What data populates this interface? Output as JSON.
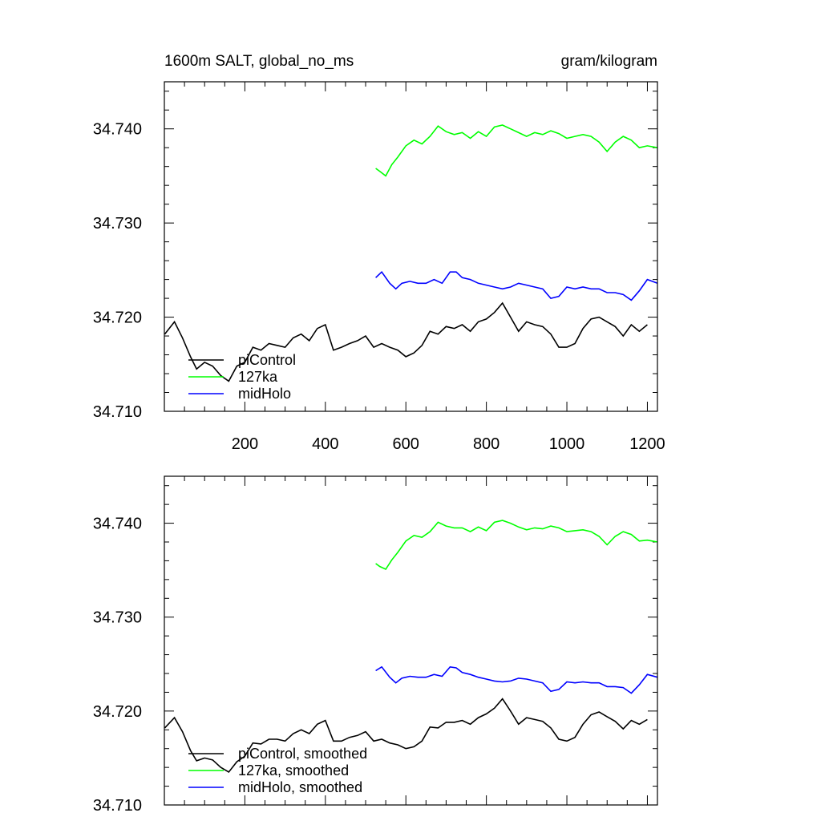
{
  "chart_data": [
    {
      "type": "line",
      "title": "1600m SALT, global_no_ms",
      "units": "gram/kilogram",
      "xlim": [
        0,
        1225
      ],
      "ylim": [
        34.71,
        34.745
      ],
      "xticks": [
        200,
        400,
        600,
        800,
        1000,
        1200
      ],
      "xtick_labels": [
        "200",
        "400",
        "600",
        "800",
        "1000",
        "1200"
      ],
      "yticks": [
        34.71,
        34.72,
        34.73,
        34.74
      ],
      "ytick_labels": [
        "34.710",
        "34.720",
        "34.730",
        "34.740"
      ],
      "legend_position": "bottom-left",
      "series": [
        {
          "name": "piControl",
          "color": "#000000",
          "x": [
            1,
            25,
            45,
            65,
            80,
            100,
            120,
            140,
            160,
            180,
            200,
            220,
            240,
            260,
            280,
            300,
            320,
            340,
            360,
            380,
            400,
            420,
            440,
            460,
            480,
            500,
            520,
            540,
            560,
            580,
            600,
            620,
            640,
            660,
            680,
            700,
            720,
            740,
            760,
            780,
            800,
            820,
            840,
            860,
            880,
            900,
            920,
            940,
            960,
            980,
            1000,
            1020,
            1040,
            1060,
            1080,
            1100,
            1120,
            1140,
            1160,
            1180,
            1200
          ],
          "values": [
            34.7182,
            34.7195,
            34.7178,
            34.7158,
            34.7145,
            34.7152,
            34.7148,
            34.7138,
            34.7132,
            34.7148,
            34.7152,
            34.7168,
            34.7165,
            34.7172,
            34.717,
            34.7168,
            34.7178,
            34.7182,
            34.7175,
            34.7188,
            34.7192,
            34.7165,
            34.7168,
            34.7172,
            34.7175,
            34.718,
            34.7168,
            34.7172,
            34.7168,
            34.7165,
            34.7158,
            34.7162,
            34.717,
            34.7185,
            34.7182,
            34.719,
            34.7188,
            34.7192,
            34.7185,
            34.7195,
            34.7198,
            34.7205,
            34.7215,
            34.72,
            34.7185,
            34.7195,
            34.7192,
            34.719,
            34.7182,
            34.7168,
            34.7168,
            34.7172,
            34.7188,
            34.7198,
            34.72,
            34.7195,
            34.719,
            34.718,
            34.7192,
            34.7185,
            34.7192
          ]
        },
        {
          "name": "127ka",
          "color": "#00ff00",
          "x": [
            525,
            535,
            550,
            565,
            580,
            600,
            620,
            640,
            660,
            680,
            700,
            720,
            740,
            760,
            780,
            800,
            820,
            840,
            860,
            880,
            900,
            920,
            940,
            960,
            980,
            1000,
            1020,
            1040,
            1060,
            1080,
            1100,
            1120,
            1140,
            1160,
            1180,
            1200,
            1225
          ],
          "values": [
            34.7358,
            34.7355,
            34.735,
            34.7362,
            34.737,
            34.7382,
            34.7388,
            34.7384,
            34.7392,
            34.7403,
            34.7397,
            34.7394,
            34.7396,
            34.739,
            34.7397,
            34.7392,
            34.7402,
            34.7404,
            34.74,
            34.7396,
            34.7392,
            34.7396,
            34.7394,
            34.7398,
            34.7395,
            34.739,
            34.7392,
            34.7394,
            34.7392,
            34.7386,
            34.7376,
            34.7386,
            34.7392,
            34.7388,
            34.738,
            34.7382,
            34.738
          ]
        },
        {
          "name": "midHolo",
          "color": "#0000ff",
          "x": [
            525,
            540,
            560,
            575,
            590,
            610,
            630,
            650,
            670,
            690,
            710,
            725,
            740,
            760,
            780,
            800,
            820,
            840,
            860,
            880,
            900,
            920,
            940,
            960,
            980,
            1000,
            1020,
            1040,
            1060,
            1080,
            1100,
            1120,
            1140,
            1160,
            1180,
            1200,
            1225
          ],
          "values": [
            34.7242,
            34.7248,
            34.7236,
            34.723,
            34.7236,
            34.7238,
            34.7236,
            34.7236,
            34.724,
            34.7236,
            34.7248,
            34.7248,
            34.7242,
            34.724,
            34.7236,
            34.7234,
            34.7232,
            34.723,
            34.7232,
            34.7236,
            34.7234,
            34.7232,
            34.723,
            34.722,
            34.7222,
            34.7232,
            34.723,
            34.7232,
            34.723,
            34.723,
            34.7226,
            34.7226,
            34.7224,
            34.7218,
            34.7228,
            34.724,
            34.7236
          ]
        }
      ],
      "legend": [
        "piControl",
        "127ka",
        "midHolo"
      ]
    },
    {
      "type": "line",
      "title": "",
      "units": "",
      "xlim": [
        0,
        1225
      ],
      "ylim": [
        34.71,
        34.745
      ],
      "xticks": [
        200,
        400,
        600,
        800,
        1000,
        1200
      ],
      "xtick_labels": [],
      "yticks": [
        34.71,
        34.72,
        34.73,
        34.74
      ],
      "ytick_labels": [
        "34.710",
        "34.720",
        "34.730",
        "34.740"
      ],
      "legend_position": "bottom-left",
      "series": [
        {
          "name": "piControl, smoothed",
          "color": "#000000",
          "x": [
            1,
            25,
            45,
            65,
            80,
            100,
            120,
            140,
            160,
            180,
            200,
            220,
            240,
            260,
            280,
            300,
            320,
            340,
            360,
            380,
            400,
            420,
            440,
            460,
            480,
            500,
            520,
            540,
            560,
            580,
            600,
            620,
            640,
            660,
            680,
            700,
            720,
            740,
            760,
            780,
            800,
            820,
            840,
            860,
            880,
            900,
            920,
            940,
            960,
            980,
            1000,
            1020,
            1040,
            1060,
            1080,
            1100,
            1120,
            1140,
            1160,
            1180,
            1200
          ],
          "values": [
            34.7182,
            34.7193,
            34.7178,
            34.7158,
            34.7147,
            34.715,
            34.7148,
            34.714,
            34.7135,
            34.7146,
            34.7152,
            34.7166,
            34.7165,
            34.717,
            34.717,
            34.7168,
            34.7176,
            34.718,
            34.7176,
            34.7186,
            34.719,
            34.7168,
            34.7168,
            34.7172,
            34.7174,
            34.7178,
            34.7168,
            34.717,
            34.7166,
            34.7164,
            34.716,
            34.7162,
            34.7168,
            34.7183,
            34.7182,
            34.7188,
            34.7188,
            34.719,
            34.7186,
            34.7193,
            34.7197,
            34.7203,
            34.7213,
            34.72,
            34.7186,
            34.7193,
            34.7191,
            34.7189,
            34.7182,
            34.717,
            34.7168,
            34.7172,
            34.7186,
            34.7196,
            34.7199,
            34.7194,
            34.7189,
            34.7181,
            34.719,
            34.7186,
            34.7191
          ]
        },
        {
          "name": "127ka, smoothed",
          "color": "#00ff00",
          "x": [
            525,
            535,
            550,
            565,
            580,
            600,
            620,
            640,
            660,
            680,
            700,
            720,
            740,
            760,
            780,
            800,
            820,
            840,
            860,
            880,
            900,
            920,
            940,
            960,
            980,
            1000,
            1020,
            1040,
            1060,
            1080,
            1100,
            1120,
            1140,
            1160,
            1180,
            1200,
            1225
          ],
          "values": [
            34.7357,
            34.7354,
            34.7351,
            34.7361,
            34.7369,
            34.7381,
            34.7387,
            34.7385,
            34.7391,
            34.7401,
            34.7397,
            34.7395,
            34.7395,
            34.7391,
            34.7396,
            34.7392,
            34.7401,
            34.7403,
            34.74,
            34.7396,
            34.7393,
            34.7395,
            34.7394,
            34.7397,
            34.7395,
            34.7391,
            34.7392,
            34.7393,
            34.7391,
            34.7386,
            34.7377,
            34.7386,
            34.7391,
            34.7388,
            34.7381,
            34.7382,
            34.738
          ]
        },
        {
          "name": "midHolo, smoothed",
          "color": "#0000ff",
          "x": [
            525,
            540,
            560,
            575,
            590,
            610,
            630,
            650,
            670,
            690,
            710,
            725,
            740,
            760,
            780,
            800,
            820,
            840,
            860,
            880,
            900,
            920,
            940,
            960,
            980,
            1000,
            1020,
            1040,
            1060,
            1080,
            1100,
            1120,
            1140,
            1160,
            1180,
            1200,
            1225
          ],
          "values": [
            34.7243,
            34.7247,
            34.7236,
            34.723,
            34.7235,
            34.7237,
            34.7236,
            34.7236,
            34.7239,
            34.7237,
            34.7247,
            34.7246,
            34.7241,
            34.7239,
            34.7236,
            34.7234,
            34.7232,
            34.7231,
            34.7232,
            34.7235,
            34.7234,
            34.7232,
            34.723,
            34.7221,
            34.7223,
            34.7231,
            34.723,
            34.7231,
            34.723,
            34.723,
            34.7226,
            34.7226,
            34.7225,
            34.7219,
            34.7228,
            34.7239,
            34.7236
          ]
        }
      ],
      "legend": [
        "piControl, smoothed",
        "127ka, smoothed",
        "midHolo, smoothed"
      ]
    }
  ]
}
